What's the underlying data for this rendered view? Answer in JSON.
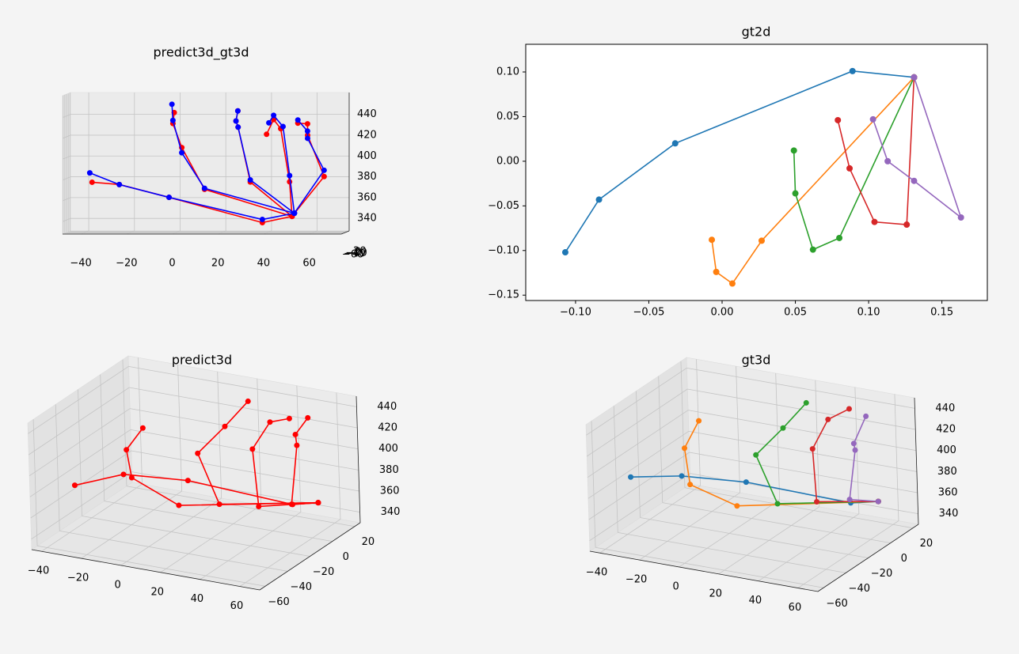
{
  "chart_data": [
    {
      "type": "line3d",
      "title": "predict3d_gt3d",
      "xlim": [
        -48,
        74
      ],
      "ylim": [
        -65,
        25
      ],
      "zlim": [
        328,
        461
      ],
      "xticks": [
        {
          "value": -40,
          "label": "−40"
        },
        {
          "value": -20,
          "label": "−20"
        },
        0,
        20,
        40,
        60
      ],
      "yticks": [
        {
          "value": -60,
          "label": "−60"
        },
        {
          "value": -40,
          "label": "−40"
        },
        {
          "value": -20,
          "label": "−20"
        },
        0,
        20
      ],
      "zticks": [
        340,
        360,
        380,
        400,
        420,
        440
      ],
      "series": [
        {
          "color": "#ff0000",
          "x": [
            49,
            36,
            -4,
            -25,
            -36
          ],
          "y": [
            25,
            25,
            3,
            -17,
            -41
          ],
          "z": [
            342,
            336,
            361,
            374,
            377
          ]
        },
        {
          "color": "#ff0000",
          "x": [
            49,
            13,
            4,
            0,
            0
          ],
          "y": [
            25,
            -35,
            -60,
            -57,
            -42
          ],
          "z": [
            342,
            370,
            411,
            434,
            444
          ]
        },
        {
          "color": "#ff0000",
          "x": [
            49,
            33,
            28,
            26,
            26
          ],
          "y": [
            25,
            -34,
            -43,
            -15,
            6
          ],
          "z": [
            342,
            377,
            430,
            435,
            444
          ]
        },
        {
          "color": "#ff0000",
          "x": [
            49,
            50,
            46,
            42,
            38
          ],
          "y": [
            25,
            -29,
            -26,
            -3,
            21
          ],
          "z": [
            342,
            377,
            428,
            436,
            421
          ]
        },
        {
          "color": "#ff0000",
          "x": [
            49,
            65,
            57,
            57,
            52
          ],
          "y": [
            25,
            -26,
            -6,
            -7,
            13
          ],
          "z": [
            342,
            382,
            421,
            432,
            432
          ]
        },
        {
          "color": "#0000ff",
          "x": [
            50,
            36,
            -4,
            -25,
            -37
          ],
          "y": [
            25,
            25,
            3,
            -17,
            -41
          ],
          "z": [
            345,
            339,
            361,
            374,
            386
          ]
        },
        {
          "color": "#0000ff",
          "x": [
            50,
            13,
            4,
            0,
            -1
          ],
          "y": [
            25,
            -35,
            -60,
            -57,
            -42
          ],
          "z": [
            345,
            371,
            406,
            437,
            452
          ]
        },
        {
          "color": "#0000ff",
          "x": [
            50,
            33,
            28,
            26,
            26
          ],
          "y": [
            25,
            -34,
            -43,
            -15,
            6
          ],
          "z": [
            345,
            379,
            430,
            435,
            444
          ]
        },
        {
          "color": "#0000ff",
          "x": [
            50,
            50,
            47,
            42,
            39
          ],
          "y": [
            25,
            -29,
            -26,
            -3,
            21
          ],
          "z": [
            345,
            383,
            430,
            440,
            432
          ]
        },
        {
          "color": "#0000ff",
          "x": [
            50,
            65,
            57,
            57,
            52
          ],
          "y": [
            25,
            -26,
            -6,
            -7,
            13
          ],
          "z": [
            345,
            388,
            418,
            425,
            435
          ]
        }
      ]
    },
    {
      "type": "line",
      "title": "gt2d",
      "xlim": [
        -0.134,
        0.181
      ],
      "ylim": [
        -0.156,
        0.131
      ],
      "xticks": [
        {
          "value": -0.1,
          "label": "−0.10"
        },
        {
          "value": -0.05,
          "label": "−0.05"
        },
        {
          "value": 0,
          "label": "0.00"
        },
        {
          "value": 0.05,
          "label": "0.05"
        },
        {
          "value": 0.1,
          "label": "0.10"
        },
        {
          "value": 0.15,
          "label": "0.15"
        }
      ],
      "yticks": [
        {
          "value": -0.15,
          "label": "−0.15"
        },
        {
          "value": -0.1,
          "label": "−0.10"
        },
        {
          "value": -0.05,
          "label": "−0.05"
        },
        {
          "value": 0,
          "label": "0.00"
        },
        {
          "value": 0.05,
          "label": "0.05"
        },
        {
          "value": 0.1,
          "label": "0.10"
        }
      ],
      "series": [
        {
          "color": "#1f77b4",
          "x": [
            -0.107,
            -0.084,
            -0.032,
            0.089,
            0.131
          ],
          "values": [
            -0.102,
            -0.043,
            0.02,
            0.101,
            0.094
          ]
        },
        {
          "color": "#ff7f0e",
          "x": [
            -0.007,
            -0.004,
            0.007,
            0.027,
            0.131
          ],
          "values": [
            -0.088,
            -0.124,
            -0.137,
            -0.089,
            0.094
          ]
        },
        {
          "color": "#2ca02c",
          "x": [
            0.049,
            0.05,
            0.062,
            0.08,
            0.131
          ],
          "values": [
            0.012,
            -0.036,
            -0.099,
            -0.086,
            0.094
          ]
        },
        {
          "color": "#d62728",
          "x": [
            0.079,
            0.087,
            0.104,
            0.126,
            0.131
          ],
          "values": [
            0.046,
            -0.008,
            -0.068,
            -0.071,
            0.094
          ]
        },
        {
          "color": "#9467bd",
          "x": [
            0.103,
            0.113,
            0.131,
            0.163,
            0.131
          ],
          "values": [
            0.047,
            0,
            -0.022,
            -0.063,
            0.094
          ]
        }
      ]
    },
    {
      "type": "line3d",
      "title": "predict3d",
      "xlim": [
        -45,
        70
      ],
      "ylim": [
        -65,
        25
      ],
      "zlim": [
        330,
        450
      ],
      "xticks": [
        {
          "value": -40,
          "label": "−40"
        },
        {
          "value": -20,
          "label": "−20"
        },
        0,
        20,
        40,
        60
      ],
      "yticks": [
        {
          "value": -60,
          "label": "−60"
        },
        {
          "value": -40,
          "label": "−40"
        },
        {
          "value": -20,
          "label": "−20"
        },
        0,
        20
      ],
      "zticks": [
        340,
        360,
        380,
        400,
        420,
        440
      ],
      "series": [
        {
          "color": "#ff0000",
          "x": [
            49,
            36,
            -4,
            -25,
            -36
          ],
          "y": [
            25,
            25,
            3,
            -17,
            -41
          ],
          "z": [
            342,
            336,
            361,
            374,
            377
          ]
        },
        {
          "color": "#ff0000",
          "x": [
            49,
            13,
            4,
            0,
            0
          ],
          "y": [
            25,
            -35,
            -60,
            -57,
            -42
          ],
          "z": [
            342,
            370,
            411,
            434,
            444
          ]
        },
        {
          "color": "#ff0000",
          "x": [
            49,
            33,
            28,
            26,
            26
          ],
          "y": [
            25,
            -34,
            -43,
            -15,
            6
          ],
          "z": [
            342,
            377,
            430,
            435,
            444
          ]
        },
        {
          "color": "#ff0000",
          "x": [
            49,
            50,
            46,
            42,
            38
          ],
          "y": [
            25,
            -29,
            -26,
            -3,
            21
          ],
          "z": [
            342,
            377,
            428,
            436,
            421
          ]
        },
        {
          "color": "#ff0000",
          "x": [
            49,
            65,
            57,
            57,
            52
          ],
          "y": [
            25,
            -26,
            -6,
            -7,
            13
          ],
          "z": [
            342,
            382,
            421,
            432,
            432
          ]
        }
      ]
    },
    {
      "type": "line3d",
      "title": "gt3d",
      "xlim": [
        -45,
        70
      ],
      "ylim": [
        -65,
        25
      ],
      "zlim": [
        330,
        450
      ],
      "xticks": [
        {
          "value": -40,
          "label": "−40"
        },
        {
          "value": -20,
          "label": "−20"
        },
        0,
        20,
        40,
        60
      ],
      "yticks": [
        {
          "value": -60,
          "label": "−60"
        },
        {
          "value": -40,
          "label": "−40"
        },
        {
          "value": -20,
          "label": "−20"
        },
        0,
        20
      ],
      "zticks": [
        340,
        360,
        380,
        400,
        420,
        440
      ],
      "series": [
        {
          "color": "#1f77b4",
          "x": [
            50,
            36,
            -4,
            -25,
            -37
          ],
          "y": [
            25,
            25,
            3,
            -17,
            -41
          ],
          "z": [
            345,
            339,
            361,
            374,
            386
          ]
        },
        {
          "color": "#ff7f0e",
          "x": [
            50,
            13,
            4,
            0,
            -1
          ],
          "y": [
            25,
            -35,
            -60,
            -57,
            -42
          ],
          "z": [
            345,
            371,
            406,
            437,
            452
          ]
        },
        {
          "color": "#2ca02c",
          "x": [
            50,
            33,
            28,
            26,
            26
          ],
          "y": [
            25,
            -34,
            -43,
            -15,
            6
          ],
          "z": [
            345,
            379,
            430,
            435,
            444
          ]
        },
        {
          "color": "#d62728",
          "x": [
            50,
            50,
            47,
            42,
            39
          ],
          "y": [
            25,
            -29,
            -26,
            -3,
            21
          ],
          "z": [
            345,
            383,
            430,
            440,
            432
          ]
        },
        {
          "color": "#9467bd",
          "x": [
            50,
            65,
            57,
            57,
            52
          ],
          "y": [
            25,
            -26,
            -6,
            -7,
            13
          ],
          "z": [
            345,
            388,
            418,
            425,
            435
          ]
        }
      ]
    }
  ]
}
